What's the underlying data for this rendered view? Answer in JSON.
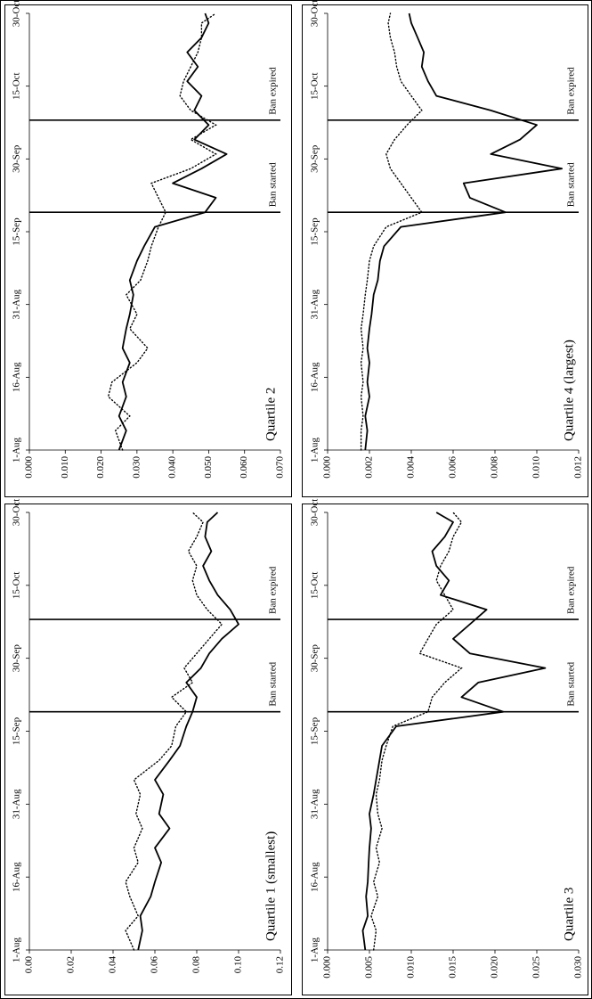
{
  "chart_data": [
    {
      "type": "line",
      "title": "Quartile 1 (smallest)",
      "xlabel": "",
      "ylabel": "",
      "x_ticks": [
        "1-Aug",
        "16-Aug",
        "31-Aug",
        "15-Sep",
        "30-Sep",
        "15-Oct",
        "30-Oct"
      ],
      "y_ticks": [
        "0.00",
        "0.02",
        "0.04",
        "0.06",
        "0.08",
        "0.10",
        "0.12"
      ],
      "ylim": [
        0,
        0.12
      ],
      "xlim": [
        "2008-08-01",
        "2008-10-30"
      ],
      "grid": false,
      "annotations": [
        {
          "label": "Ban started",
          "date": "2008-09-19"
        },
        {
          "label": "Ban expired",
          "date": "2008-10-08"
        }
      ],
      "series": [
        {
          "style": "solid",
          "x": [
            "2008-08-01",
            "2008-08-05",
            "2008-08-08",
            "2008-08-12",
            "2008-08-15",
            "2008-08-19",
            "2008-08-22",
            "2008-08-26",
            "2008-08-29",
            "2008-09-02",
            "2008-09-05",
            "2008-09-09",
            "2008-09-12",
            "2008-09-16",
            "2008-09-19",
            "2008-09-22",
            "2008-09-25",
            "2008-09-28",
            "2008-10-01",
            "2008-10-04",
            "2008-10-07",
            "2008-10-10",
            "2008-10-13",
            "2008-10-16",
            "2008-10-19",
            "2008-10-22",
            "2008-10-25",
            "2008-10-28",
            "2008-10-30"
          ],
          "values": [
            0.052,
            0.054,
            0.053,
            0.058,
            0.06,
            0.063,
            0.06,
            0.067,
            0.062,
            0.064,
            0.06,
            0.067,
            0.072,
            0.075,
            0.078,
            0.08,
            0.075,
            0.082,
            0.086,
            0.092,
            0.1,
            0.096,
            0.09,
            0.086,
            0.083,
            0.087,
            0.084,
            0.085,
            0.09
          ]
        },
        {
          "style": "dotted",
          "x": [
            "2008-08-01",
            "2008-08-05",
            "2008-08-08",
            "2008-08-12",
            "2008-08-15",
            "2008-08-19",
            "2008-08-22",
            "2008-08-26",
            "2008-08-29",
            "2008-09-02",
            "2008-09-05",
            "2008-09-09",
            "2008-09-12",
            "2008-09-16",
            "2008-09-19",
            "2008-09-22",
            "2008-09-25",
            "2008-09-28",
            "2008-10-01",
            "2008-10-04",
            "2008-10-07",
            "2008-10-10",
            "2008-10-13",
            "2008-10-16",
            "2008-10-19",
            "2008-10-22",
            "2008-10-25",
            "2008-10-28",
            "2008-10-30"
          ],
          "values": [
            0.05,
            0.046,
            0.052,
            0.048,
            0.046,
            0.052,
            0.05,
            0.054,
            0.051,
            0.053,
            0.05,
            0.062,
            0.068,
            0.07,
            0.075,
            0.068,
            0.078,
            0.074,
            0.08,
            0.086,
            0.092,
            0.085,
            0.08,
            0.078,
            0.08,
            0.076,
            0.08,
            0.083,
            0.078
          ]
        }
      ]
    },
    {
      "type": "line",
      "title": "Quartile 2",
      "xlabel": "",
      "ylabel": "",
      "x_ticks": [
        "1-Aug",
        "16-Aug",
        "31-Aug",
        "15-Sep",
        "30-Sep",
        "15-Oct",
        "30-Oct"
      ],
      "y_ticks": [
        "0.000",
        "0.010",
        "0.020",
        "0.030",
        "0.040",
        "0.050",
        "0.060",
        "0.070"
      ],
      "ylim": [
        0,
        0.07
      ],
      "xlim": [
        "2008-08-01",
        "2008-10-30"
      ],
      "grid": false,
      "annotations": [
        {
          "label": "Ban started",
          "date": "2008-09-19"
        },
        {
          "label": "Ban expired",
          "date": "2008-10-08"
        }
      ],
      "series": [
        {
          "style": "solid",
          "x": [
            "2008-08-01",
            "2008-08-05",
            "2008-08-08",
            "2008-08-12",
            "2008-08-15",
            "2008-08-19",
            "2008-08-22",
            "2008-08-26",
            "2008-08-29",
            "2008-09-02",
            "2008-09-05",
            "2008-09-09",
            "2008-09-12",
            "2008-09-16",
            "2008-09-19",
            "2008-09-22",
            "2008-09-25",
            "2008-09-28",
            "2008-10-01",
            "2008-10-04",
            "2008-10-07",
            "2008-10-10",
            "2008-10-13",
            "2008-10-16",
            "2008-10-19",
            "2008-10-22",
            "2008-10-25",
            "2008-10-28",
            "2008-10-30"
          ],
          "values": [
            0.025,
            0.027,
            0.025,
            0.027,
            0.026,
            0.028,
            0.026,
            0.027,
            0.028,
            0.029,
            0.028,
            0.03,
            0.032,
            0.035,
            0.049,
            0.052,
            0.04,
            0.048,
            0.055,
            0.046,
            0.05,
            0.046,
            0.048,
            0.044,
            0.047,
            0.044,
            0.048,
            0.05,
            0.049
          ]
        },
        {
          "style": "dotted",
          "x": [
            "2008-08-01",
            "2008-08-05",
            "2008-08-08",
            "2008-08-12",
            "2008-08-15",
            "2008-08-19",
            "2008-08-22",
            "2008-08-26",
            "2008-08-29",
            "2008-09-02",
            "2008-09-05",
            "2008-09-09",
            "2008-09-12",
            "2008-09-16",
            "2008-09-19",
            "2008-09-22",
            "2008-09-25",
            "2008-09-28",
            "2008-10-01",
            "2008-10-04",
            "2008-10-07",
            "2008-10-10",
            "2008-10-13",
            "2008-10-16",
            "2008-10-19",
            "2008-10-22",
            "2008-10-25",
            "2008-10-28",
            "2008-10-30"
          ],
          "values": [
            0.026,
            0.024,
            0.028,
            0.022,
            0.023,
            0.03,
            0.033,
            0.028,
            0.03,
            0.027,
            0.031,
            0.033,
            0.034,
            0.036,
            0.038,
            0.036,
            0.034,
            0.045,
            0.052,
            0.045,
            0.052,
            0.045,
            0.042,
            0.043,
            0.045,
            0.047,
            0.048,
            0.048,
            0.052
          ]
        }
      ]
    },
    {
      "type": "line",
      "title": "Quartile 3",
      "xlabel": "",
      "ylabel": "",
      "x_ticks": [
        "1-Aug",
        "16-Aug",
        "31-Aug",
        "15-Sep",
        "30-Sep",
        "15-Oct",
        "30-Oct"
      ],
      "y_ticks": [
        "0.000",
        "0.005",
        "0.010",
        "0.015",
        "0.020",
        "0.025",
        "0.030"
      ],
      "ylim": [
        0,
        0.03
      ],
      "xlim": [
        "2008-08-01",
        "2008-10-30"
      ],
      "grid": false,
      "annotations": [
        {
          "label": "Ban started",
          "date": "2008-09-19"
        },
        {
          "label": "Ban expired",
          "date": "2008-10-08"
        }
      ],
      "series": [
        {
          "style": "solid",
          "x": [
            "2008-08-01",
            "2008-08-05",
            "2008-08-08",
            "2008-08-12",
            "2008-08-15",
            "2008-08-19",
            "2008-08-22",
            "2008-08-26",
            "2008-08-29",
            "2008-09-02",
            "2008-09-05",
            "2008-09-09",
            "2008-09-12",
            "2008-09-16",
            "2008-09-19",
            "2008-09-22",
            "2008-09-25",
            "2008-09-28",
            "2008-10-01",
            "2008-10-04",
            "2008-10-07",
            "2008-10-10",
            "2008-10-13",
            "2008-10-16",
            "2008-10-19",
            "2008-10-22",
            "2008-10-25",
            "2008-10-28",
            "2008-10-30"
          ],
          "values": [
            0.0045,
            0.0042,
            0.0048,
            0.0046,
            0.0048,
            0.0049,
            0.005,
            0.0052,
            0.005,
            0.0055,
            0.0058,
            0.0062,
            0.0065,
            0.0082,
            0.021,
            0.016,
            0.018,
            0.026,
            0.017,
            0.015,
            0.017,
            0.019,
            0.0135,
            0.0145,
            0.013,
            0.0125,
            0.014,
            0.015,
            0.013
          ]
        },
        {
          "style": "dotted",
          "x": [
            "2008-08-01",
            "2008-08-05",
            "2008-08-08",
            "2008-08-12",
            "2008-08-15",
            "2008-08-19",
            "2008-08-22",
            "2008-08-26",
            "2008-08-29",
            "2008-09-02",
            "2008-09-05",
            "2008-09-09",
            "2008-09-12",
            "2008-09-16",
            "2008-09-19",
            "2008-09-22",
            "2008-09-25",
            "2008-09-28",
            "2008-10-01",
            "2008-10-04",
            "2008-10-07",
            "2008-10-10",
            "2008-10-13",
            "2008-10-16",
            "2008-10-19",
            "2008-10-22",
            "2008-10-25",
            "2008-10-28",
            "2008-10-30"
          ],
          "values": [
            0.0055,
            0.0058,
            0.0052,
            0.006,
            0.0055,
            0.0062,
            0.0058,
            0.0065,
            0.006,
            0.0058,
            0.0062,
            0.0065,
            0.007,
            0.0078,
            0.012,
            0.0125,
            0.014,
            0.016,
            0.011,
            0.012,
            0.013,
            0.015,
            0.014,
            0.013,
            0.0135,
            0.0145,
            0.015,
            0.016,
            0.015
          ]
        }
      ]
    },
    {
      "type": "line",
      "title": "Quartile 4 (largest)",
      "xlabel": "",
      "ylabel": "",
      "x_ticks": [
        "1-Aug",
        "16-Aug",
        "31-Aug",
        "15-Sep",
        "30-Sep",
        "15-Oct",
        "30-Oct"
      ],
      "y_ticks": [
        "0.000",
        "0.002",
        "0.004",
        "0.006",
        "0.008",
        "0.010",
        "0.012"
      ],
      "ylim": [
        0,
        0.012
      ],
      "xlim": [
        "2008-08-01",
        "2008-10-30"
      ],
      "grid": false,
      "annotations": [
        {
          "label": "Ban started",
          "date": "2008-09-19"
        },
        {
          "label": "Ban expired",
          "date": "2008-10-08"
        }
      ],
      "series": [
        {
          "style": "solid",
          "x": [
            "2008-08-01",
            "2008-08-05",
            "2008-08-08",
            "2008-08-12",
            "2008-08-15",
            "2008-08-19",
            "2008-08-22",
            "2008-08-26",
            "2008-08-29",
            "2008-09-02",
            "2008-09-05",
            "2008-09-09",
            "2008-09-12",
            "2008-09-16",
            "2008-09-19",
            "2008-09-22",
            "2008-09-25",
            "2008-09-28",
            "2008-10-01",
            "2008-10-04",
            "2008-10-07",
            "2008-10-10",
            "2008-10-13",
            "2008-10-16",
            "2008-10-19",
            "2008-10-22",
            "2008-10-25",
            "2008-10-28",
            "2008-10-30"
          ],
          "values": [
            0.0018,
            0.0019,
            0.0018,
            0.002,
            0.0019,
            0.002,
            0.0019,
            0.002,
            0.0021,
            0.0022,
            0.0024,
            0.0025,
            0.0027,
            0.0035,
            0.0085,
            0.0068,
            0.0065,
            0.0112,
            0.0078,
            0.0092,
            0.01,
            0.0078,
            0.0052,
            0.0048,
            0.0045,
            0.0046,
            0.0043,
            0.004,
            0.0039
          ]
        },
        {
          "style": "dotted",
          "x": [
            "2008-08-01",
            "2008-08-05",
            "2008-08-08",
            "2008-08-12",
            "2008-08-15",
            "2008-08-19",
            "2008-08-22",
            "2008-08-26",
            "2008-08-29",
            "2008-09-02",
            "2008-09-05",
            "2008-09-09",
            "2008-09-12",
            "2008-09-16",
            "2008-09-19",
            "2008-09-22",
            "2008-09-25",
            "2008-09-28",
            "2008-10-01",
            "2008-10-04",
            "2008-10-07",
            "2008-10-10",
            "2008-10-13",
            "2008-10-16",
            "2008-10-19",
            "2008-10-22",
            "2008-10-25",
            "2008-10-28",
            "2008-10-30"
          ],
          "values": [
            0.0016,
            0.0016,
            0.0017,
            0.0016,
            0.0017,
            0.0016,
            0.0017,
            0.0016,
            0.0017,
            0.0018,
            0.0019,
            0.002,
            0.0022,
            0.0028,
            0.0045,
            0.004,
            0.0035,
            0.003,
            0.0028,
            0.0032,
            0.0038,
            0.0045,
            0.004,
            0.0035,
            0.0033,
            0.0032,
            0.003,
            0.0029,
            0.003
          ]
        }
      ]
    }
  ]
}
